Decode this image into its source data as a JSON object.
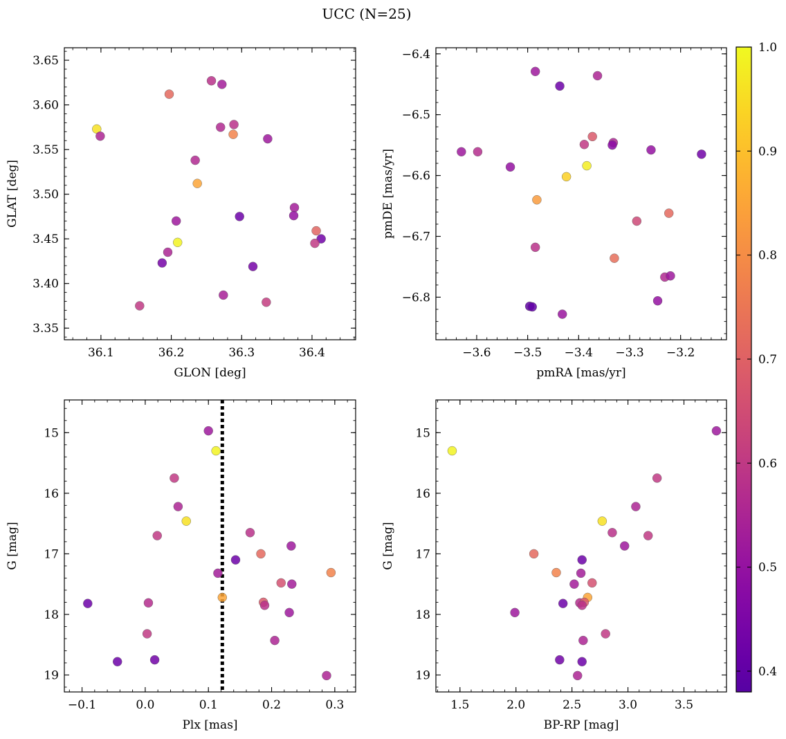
{
  "figure": {
    "title": "UCC (N=25)"
  },
  "chart_data": [
    {
      "id": "glon-glat",
      "type": "scatter",
      "xlabel": "GLON [deg]",
      "ylabel": "GLAT [deg]",
      "xlim": [
        36.048,
        36.462
      ],
      "ylim": [
        3.337,
        3.664
      ],
      "y_inverted": false,
      "xticks": [
        36.1,
        36.2,
        36.3,
        36.4
      ],
      "xticklabels": [
        "36.1",
        "36.2",
        "36.3",
        "36.4"
      ],
      "yticks": [
        3.35,
        3.4,
        3.45,
        3.5,
        3.55,
        3.6,
        3.65
      ],
      "yticklabels": [
        "3.35",
        "3.40",
        "3.45",
        "3.50",
        "3.55",
        "3.60",
        "3.65"
      ],
      "points": [
        {
          "x": 36.257,
          "y": 3.627,
          "c": 0.58
        },
        {
          "x": 36.272,
          "y": 3.623,
          "c": 0.53
        },
        {
          "x": 36.197,
          "y": 3.612,
          "c": 0.72
        },
        {
          "x": 36.094,
          "y": 3.573,
          "c": 0.96
        },
        {
          "x": 36.099,
          "y": 3.565,
          "c": 0.55
        },
        {
          "x": 36.27,
          "y": 3.575,
          "c": 0.56
        },
        {
          "x": 36.289,
          "y": 3.578,
          "c": 0.58
        },
        {
          "x": 36.288,
          "y": 3.567,
          "c": 0.78
        },
        {
          "x": 36.337,
          "y": 3.562,
          "c": 0.52
        },
        {
          "x": 36.234,
          "y": 3.538,
          "c": 0.56
        },
        {
          "x": 36.237,
          "y": 3.512,
          "c": 0.85
        },
        {
          "x": 36.375,
          "y": 3.485,
          "c": 0.53
        },
        {
          "x": 36.374,
          "y": 3.476,
          "c": 0.5
        },
        {
          "x": 36.297,
          "y": 3.475,
          "c": 0.42
        },
        {
          "x": 36.207,
          "y": 3.47,
          "c": 0.52
        },
        {
          "x": 36.406,
          "y": 3.459,
          "c": 0.71
        },
        {
          "x": 36.413,
          "y": 3.45,
          "c": 0.43
        },
        {
          "x": 36.404,
          "y": 3.445,
          "c": 0.6
        },
        {
          "x": 36.209,
          "y": 3.446,
          "c": 0.99
        },
        {
          "x": 36.195,
          "y": 3.435,
          "c": 0.55
        },
        {
          "x": 36.187,
          "y": 3.423,
          "c": 0.44
        },
        {
          "x": 36.316,
          "y": 3.419,
          "c": 0.44
        },
        {
          "x": 36.274,
          "y": 3.387,
          "c": 0.54
        },
        {
          "x": 36.335,
          "y": 3.379,
          "c": 0.61
        },
        {
          "x": 36.155,
          "y": 3.375,
          "c": 0.6
        }
      ]
    },
    {
      "id": "pmra-pmde",
      "type": "scatter",
      "xlabel": "pmRA [mas/yr]",
      "ylabel": "pmDE [mas/yr]",
      "xlim": [
        -3.68,
        -3.11
      ],
      "ylim": [
        -6.87,
        -6.39
      ],
      "y_inverted": false,
      "xticks": [
        -3.6,
        -3.5,
        -3.4,
        -3.3,
        -3.2
      ],
      "xticklabels": [
        "−3.6",
        "−3.5",
        "−3.4",
        "−3.3",
        "−3.2"
      ],
      "yticks": [
        -6.8,
        -6.7,
        -6.6,
        -6.5,
        -6.4
      ],
      "yticklabels": [
        "−6.8",
        "−6.7",
        "−6.6",
        "−6.5",
        "−6.4"
      ],
      "points": [
        {
          "x": -3.485,
          "y": -6.429,
          "c": 0.52
        },
        {
          "x": -3.363,
          "y": -6.436,
          "c": 0.55
        },
        {
          "x": -3.437,
          "y": -6.453,
          "c": 0.42
        },
        {
          "x": -3.373,
          "y": -6.536,
          "c": 0.68
        },
        {
          "x": -3.389,
          "y": -6.549,
          "c": 0.6
        },
        {
          "x": -3.332,
          "y": -6.546,
          "c": 0.55
        },
        {
          "x": -3.334,
          "y": -6.55,
          "c": 0.48
        },
        {
          "x": -3.63,
          "y": -6.561,
          "c": 0.52
        },
        {
          "x": -3.598,
          "y": -6.561,
          "c": 0.57
        },
        {
          "x": -3.258,
          "y": -6.558,
          "c": 0.5
        },
        {
          "x": -3.159,
          "y": -6.565,
          "c": 0.43
        },
        {
          "x": -3.534,
          "y": -6.586,
          "c": 0.5
        },
        {
          "x": -3.384,
          "y": -6.584,
          "c": 0.98
        },
        {
          "x": -3.424,
          "y": -6.602,
          "c": 0.93
        },
        {
          "x": -3.482,
          "y": -6.64,
          "c": 0.83
        },
        {
          "x": -3.223,
          "y": -6.662,
          "c": 0.72
        },
        {
          "x": -3.286,
          "y": -6.675,
          "c": 0.64
        },
        {
          "x": -3.485,
          "y": -6.718,
          "c": 0.58
        },
        {
          "x": -3.33,
          "y": -6.736,
          "c": 0.73
        },
        {
          "x": -3.231,
          "y": -6.767,
          "c": 0.56
        },
        {
          "x": -3.22,
          "y": -6.765,
          "c": 0.52
        },
        {
          "x": -3.245,
          "y": -6.806,
          "c": 0.5
        },
        {
          "x": -3.496,
          "y": -6.815,
          "c": 0.4
        },
        {
          "x": -3.491,
          "y": -6.816,
          "c": 0.4
        },
        {
          "x": -3.432,
          "y": -6.828,
          "c": 0.51
        }
      ]
    },
    {
      "id": "plx-g",
      "type": "scatter",
      "xlabel": "Plx [mas]",
      "ylabel": "G [mag]",
      "xlim": [
        -0.128,
        0.333
      ],
      "ylim": [
        14.46,
        19.28
      ],
      "y_inverted": true,
      "xticks": [
        -0.1,
        0.0,
        0.1,
        0.2,
        0.3
      ],
      "xticklabels": [
        "−0.1",
        "0.0",
        "0.1",
        "0.2",
        "0.3"
      ],
      "yticks": [
        15,
        16,
        17,
        18,
        19
      ],
      "yticklabels": [
        "15",
        "16",
        "17",
        "18",
        "19"
      ],
      "vline": 0.122,
      "points": [
        {
          "x": 0.1,
          "y": 14.97,
          "c": 0.52
        },
        {
          "x": 0.112,
          "y": 15.3,
          "c": 0.99
        },
        {
          "x": 0.046,
          "y": 15.75,
          "c": 0.6
        },
        {
          "x": 0.052,
          "y": 16.22,
          "c": 0.55
        },
        {
          "x": 0.065,
          "y": 16.46,
          "c": 0.96
        },
        {
          "x": 0.019,
          "y": 16.7,
          "c": 0.6
        },
        {
          "x": 0.166,
          "y": 16.65,
          "c": 0.58
        },
        {
          "x": 0.231,
          "y": 16.87,
          "c": 0.52
        },
        {
          "x": 0.183,
          "y": 17.0,
          "c": 0.72
        },
        {
          "x": 0.143,
          "y": 17.1,
          "c": 0.42
        },
        {
          "x": 0.115,
          "y": 17.32,
          "c": 0.53
        },
        {
          "x": 0.294,
          "y": 17.31,
          "c": 0.78
        },
        {
          "x": 0.215,
          "y": 17.48,
          "c": 0.66
        },
        {
          "x": 0.232,
          "y": 17.5,
          "c": 0.53
        },
        {
          "x": 0.122,
          "y": 17.72,
          "c": 0.85
        },
        {
          "x": -0.091,
          "y": 17.82,
          "c": 0.42
        },
        {
          "x": 0.005,
          "y": 17.81,
          "c": 0.57
        },
        {
          "x": 0.187,
          "y": 17.8,
          "c": 0.68
        },
        {
          "x": 0.189,
          "y": 17.85,
          "c": 0.58
        },
        {
          "x": 0.228,
          "y": 17.97,
          "c": 0.52
        },
        {
          "x": 0.003,
          "y": 18.32,
          "c": 0.6
        },
        {
          "x": 0.205,
          "y": 18.43,
          "c": 0.55
        },
        {
          "x": 0.015,
          "y": 18.75,
          "c": 0.43
        },
        {
          "x": -0.044,
          "y": 18.78,
          "c": 0.42
        },
        {
          "x": 0.287,
          "y": 19.01,
          "c": 0.55
        }
      ]
    },
    {
      "id": "bprp-g",
      "type": "scatter",
      "xlabel": "BP-RP [mag]",
      "ylabel": "G [mag]",
      "xlim": [
        1.285,
        3.88
      ],
      "ylim": [
        14.46,
        19.28
      ],
      "y_inverted": true,
      "xticks": [
        1.5,
        2.0,
        2.5,
        3.0,
        3.5
      ],
      "xticklabels": [
        "1.5",
        "2.0",
        "2.5",
        "3.0",
        "3.5"
      ],
      "yticks": [
        15,
        16,
        17,
        18,
        19
      ],
      "yticklabels": [
        "15",
        "16",
        "17",
        "18",
        "19"
      ],
      "points": [
        {
          "x": 3.79,
          "y": 14.97,
          "c": 0.52
        },
        {
          "x": 1.43,
          "y": 15.3,
          "c": 0.99
        },
        {
          "x": 3.26,
          "y": 15.75,
          "c": 0.6
        },
        {
          "x": 3.07,
          "y": 16.22,
          "c": 0.55
        },
        {
          "x": 2.77,
          "y": 16.46,
          "c": 0.96
        },
        {
          "x": 2.86,
          "y": 16.65,
          "c": 0.58
        },
        {
          "x": 3.18,
          "y": 16.7,
          "c": 0.6
        },
        {
          "x": 2.97,
          "y": 16.87,
          "c": 0.52
        },
        {
          "x": 2.16,
          "y": 17.0,
          "c": 0.72
        },
        {
          "x": 2.59,
          "y": 17.1,
          "c": 0.42
        },
        {
          "x": 2.58,
          "y": 17.32,
          "c": 0.53
        },
        {
          "x": 2.36,
          "y": 17.31,
          "c": 0.78
        },
        {
          "x": 2.52,
          "y": 17.5,
          "c": 0.53
        },
        {
          "x": 2.68,
          "y": 17.48,
          "c": 0.66
        },
        {
          "x": 2.64,
          "y": 17.72,
          "c": 0.85
        },
        {
          "x": 2.42,
          "y": 17.82,
          "c": 0.42
        },
        {
          "x": 2.57,
          "y": 17.81,
          "c": 0.57
        },
        {
          "x": 2.61,
          "y": 17.8,
          "c": 0.68
        },
        {
          "x": 2.59,
          "y": 17.85,
          "c": 0.58
        },
        {
          "x": 1.99,
          "y": 17.97,
          "c": 0.52
        },
        {
          "x": 2.8,
          "y": 18.32,
          "c": 0.6
        },
        {
          "x": 2.6,
          "y": 18.43,
          "c": 0.55
        },
        {
          "x": 2.39,
          "y": 18.75,
          "c": 0.43
        },
        {
          "x": 2.59,
          "y": 18.78,
          "c": 0.42
        },
        {
          "x": 2.55,
          "y": 19.01,
          "c": 0.55
        }
      ]
    }
  ],
  "colorbar": {
    "cmap": "plasma",
    "range": [
      0.38,
      1.0
    ],
    "ticks": [
      0.4,
      0.5,
      0.6,
      0.7,
      0.8,
      0.9,
      1.0
    ],
    "ticklabels": [
      "0.4",
      "0.5",
      "0.6",
      "0.7",
      "0.8",
      "0.9",
      "1.0"
    ]
  },
  "style": {
    "point_alpha": 0.85,
    "point_edge": "#555555",
    "vline_color": "#000000"
  }
}
